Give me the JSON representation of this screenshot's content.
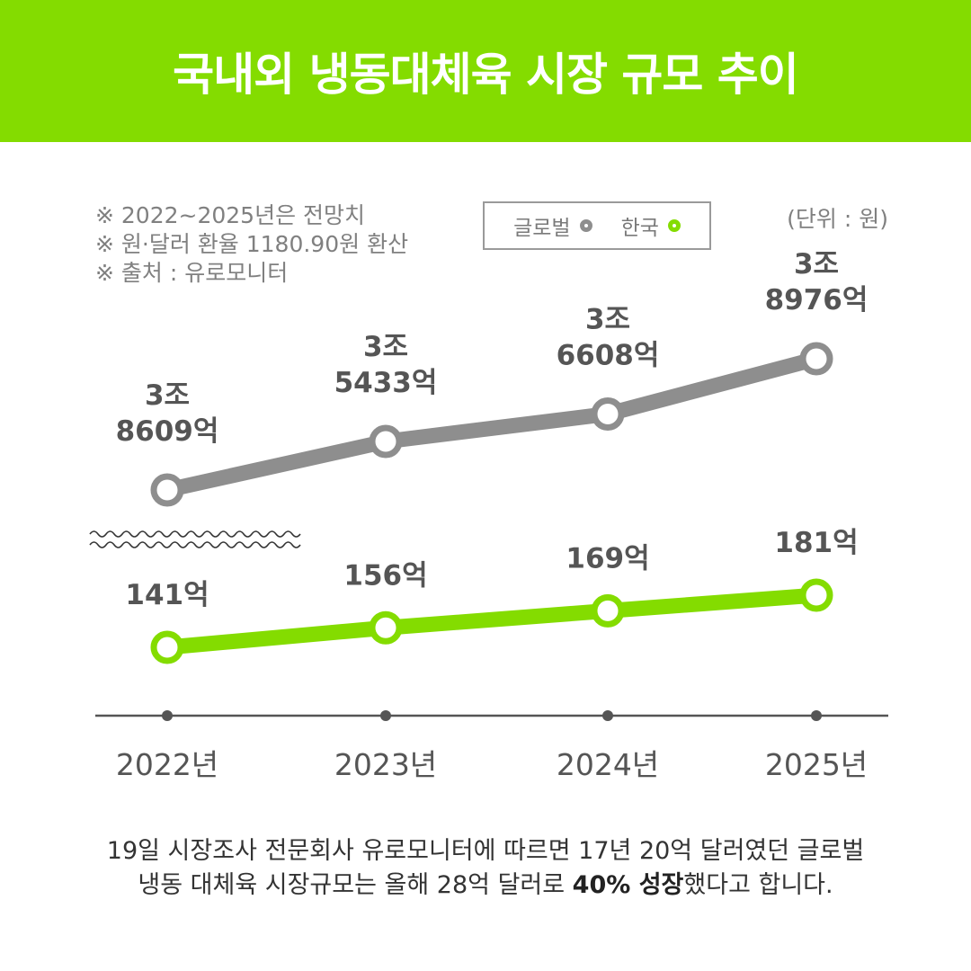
{
  "header": {
    "title": "국내외 냉동대체육 시장 규모 추이",
    "bg_color": "#84dc00"
  },
  "notes": [
    "※ 2022~2025년은 전망치",
    "※ 원·달러 환율 1180.90원 환산",
    "※ 출처 : 유로모니터"
  ],
  "legend": {
    "global_label": "글로벌",
    "korea_label": "한국"
  },
  "unit": "(단위 : 원)",
  "colors": {
    "global": "#8e8e8e",
    "korea": "#84dc00",
    "axis": "#555555",
    "value_text": "#555555"
  },
  "chart_data": {
    "type": "line",
    "categories": [
      "2022년",
      "2023년",
      "2024년",
      "2025년"
    ],
    "series": [
      {
        "name": "글로벌",
        "values": [
          38609,
          35433,
          36608,
          38976
        ],
        "labels_line1": [
          "3조",
          "3조",
          "3조",
          "3조"
        ],
        "labels_line2": [
          "8609억",
          "5433억",
          "6608억",
          "8976억"
        ]
      },
      {
        "name": "한국",
        "values": [
          141,
          156,
          169,
          181
        ],
        "labels_line1": [
          "141억",
          "156억",
          "169억",
          "181억"
        ]
      }
    ],
    "axis_break": true,
    "grid": false
  },
  "footer": {
    "line1": "19일 시장조사 전문회사 유로모니터에 따르면 17년 20억 달러였던 글로벌",
    "line2_pre": "냉동 대체육 시장규모는 올해 28억 달러로 ",
    "line2_bold": "40% 성장",
    "line2_post": "했다고 합니다."
  }
}
